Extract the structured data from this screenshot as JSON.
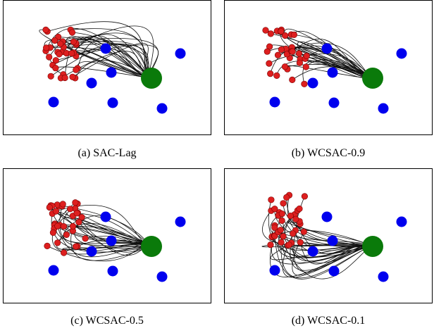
{
  "figure": {
    "panels": [
      {
        "caption": "(a) SAC-Lag",
        "trajectory_spread": "wide"
      },
      {
        "caption": "(b) WCSAC-0.9",
        "trajectory_spread": "narrow"
      },
      {
        "caption": "(c) WCSAC-0.5",
        "trajectory_spread": "medium"
      },
      {
        "caption": "(d) WCSAC-0.1",
        "trajectory_spread": "wide-low"
      }
    ],
    "colors": {
      "goal": "#0a7a0a",
      "hazard": "#0000ee",
      "start": "#dd1f1f",
      "trajectory": "#111111"
    }
  }
}
